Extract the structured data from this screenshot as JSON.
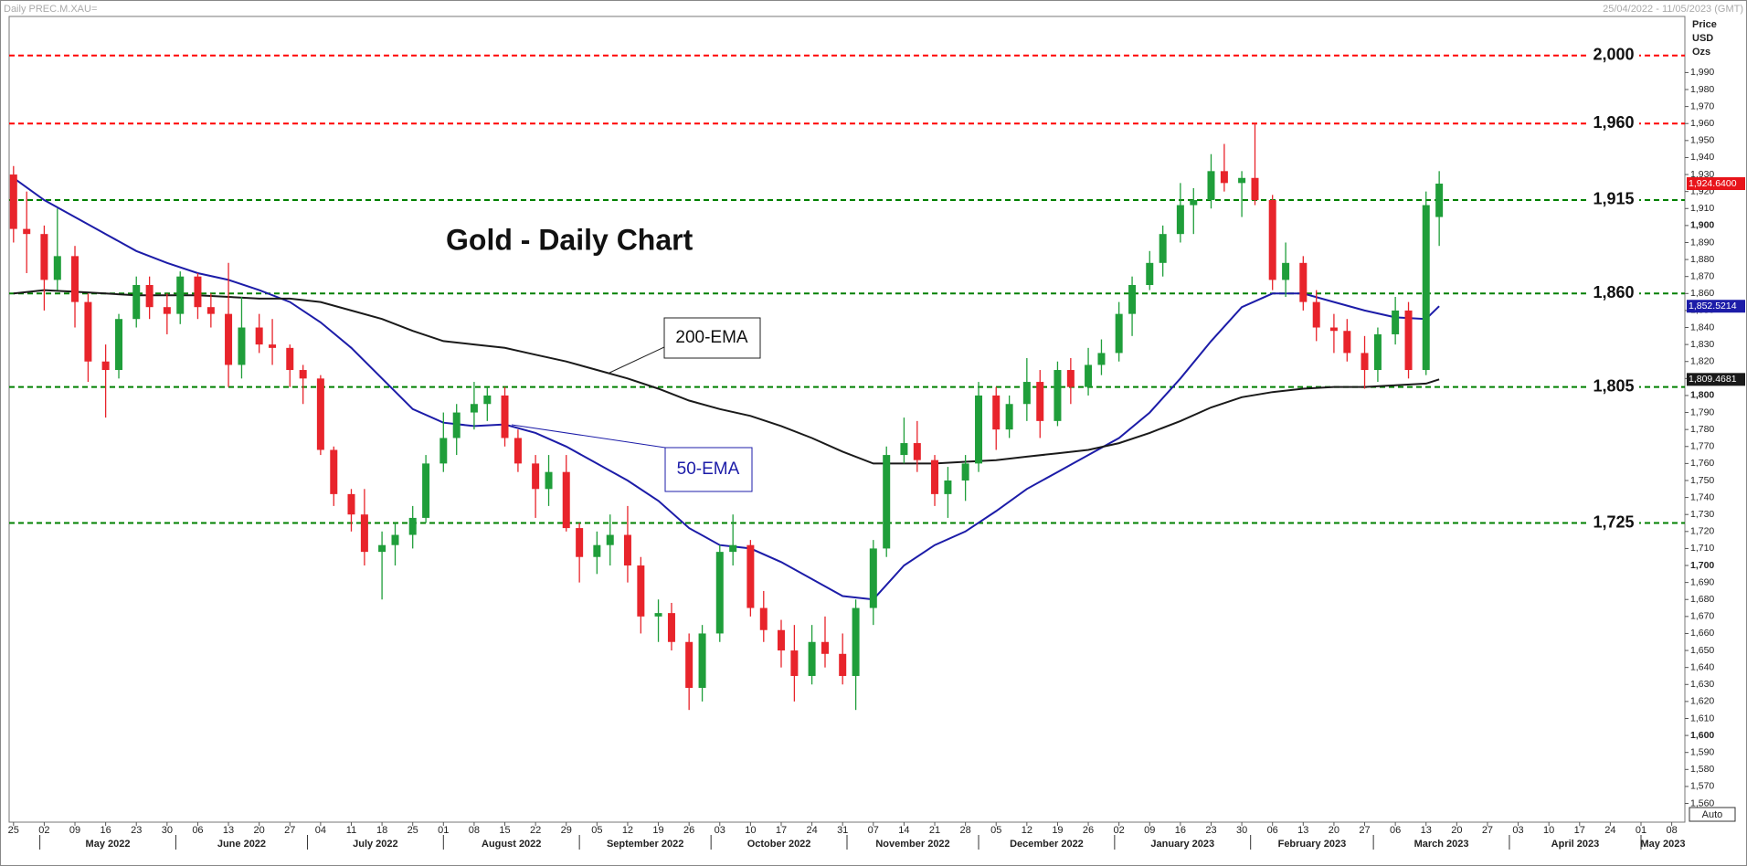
{
  "chart_data": {
    "type": "candlestick",
    "title": "Gold - Daily Chart",
    "instrument": "Daily PREC.M.XAU=",
    "range_label": "25/04/2022 - 11/05/2023 (GMT)",
    "y_label": [
      "Price",
      "USD",
      "Ozs"
    ],
    "button": "Auto",
    "up_color": "#1f9e3a",
    "down_color": "#e8242b",
    "xlim": [
      "2022-04-24",
      "2023-05-11"
    ],
    "ylim": [
      1549,
      2023
    ],
    "x": [
      "2022-04-25",
      "2022-04-28",
      "2022-05-02",
      "2022-05-05",
      "2022-05-09",
      "2022-05-12",
      "2022-05-16",
      "2022-05-19",
      "2022-05-23",
      "2022-05-26",
      "2022-05-30",
      "2022-06-02",
      "2022-06-06",
      "2022-06-09",
      "2022-06-13",
      "2022-06-16",
      "2022-06-20",
      "2022-06-23",
      "2022-06-27",
      "2022-06-30",
      "2022-07-04",
      "2022-07-07",
      "2022-07-11",
      "2022-07-14",
      "2022-07-18",
      "2022-07-21",
      "2022-07-25",
      "2022-07-28",
      "2022-08-01",
      "2022-08-04",
      "2022-08-08",
      "2022-08-11",
      "2022-08-15",
      "2022-08-18",
      "2022-08-22",
      "2022-08-25",
      "2022-08-29",
      "2022-09-01",
      "2022-09-05",
      "2022-09-08",
      "2022-09-12",
      "2022-09-15",
      "2022-09-19",
      "2022-09-22",
      "2022-09-26",
      "2022-09-29",
      "2022-10-03",
      "2022-10-06",
      "2022-10-10",
      "2022-10-13",
      "2022-10-17",
      "2022-10-20",
      "2022-10-24",
      "2022-10-27",
      "2022-10-31",
      "2022-11-03",
      "2022-11-07",
      "2022-11-10",
      "2022-11-14",
      "2022-11-17",
      "2022-11-21",
      "2022-11-24",
      "2022-11-28",
      "2022-12-01",
      "2022-12-05",
      "2022-12-08",
      "2022-12-12",
      "2022-12-15",
      "2022-12-19",
      "2022-12-22",
      "2022-12-26",
      "2022-12-29",
      "2023-01-02",
      "2023-01-05",
      "2023-01-09",
      "2023-01-12",
      "2023-01-16",
      "2023-01-19",
      "2023-01-23",
      "2023-01-26",
      "2023-01-30",
      "2023-02-02",
      "2023-02-06",
      "2023-02-09",
      "2023-02-13",
      "2023-02-16",
      "2023-02-20",
      "2023-02-23",
      "2023-02-27",
      "2023-03-02",
      "2023-03-06",
      "2023-03-09",
      "2023-03-13",
      "2023-03-16"
    ],
    "open": [
      1930,
      1898,
      1895,
      1868,
      1882,
      1855,
      1820,
      1815,
      1845,
      1865,
      1852,
      1848,
      1870,
      1852,
      1848,
      1818,
      1840,
      1830,
      1828,
      1815,
      1810,
      1768,
      1742,
      1730,
      1708,
      1712,
      1718,
      1728,
      1760,
      1775,
      1790,
      1795,
      1800,
      1775,
      1760,
      1745,
      1755,
      1722,
      1705,
      1712,
      1718,
      1700,
      1670,
      1672,
      1655,
      1628,
      1660,
      1708,
      1712,
      1675,
      1662,
      1650,
      1635,
      1655,
      1648,
      1635,
      1675,
      1710,
      1765,
      1772,
      1762,
      1742,
      1750,
      1760,
      1800,
      1780,
      1795,
      1808,
      1785,
      1815,
      1805,
      1818,
      1825,
      1848,
      1865,
      1878,
      1895,
      1912,
      1915,
      1932,
      1925,
      1928,
      1915,
      1868,
      1878,
      1855,
      1840,
      1838,
      1825,
      1815,
      1836,
      1850,
      1815,
      1905
    ],
    "high": [
      1935,
      1920,
      1900,
      1910,
      1888,
      1860,
      1830,
      1848,
      1870,
      1870,
      1860,
      1873,
      1872,
      1860,
      1878,
      1858,
      1848,
      1845,
      1830,
      1818,
      1812,
      1770,
      1745,
      1745,
      1720,
      1725,
      1735,
      1765,
      1790,
      1795,
      1808,
      1805,
      1805,
      1780,
      1765,
      1765,
      1765,
      1725,
      1720,
      1730,
      1735,
      1705,
      1680,
      1678,
      1660,
      1665,
      1712,
      1730,
      1715,
      1685,
      1668,
      1665,
      1665,
      1670,
      1660,
      1680,
      1715,
      1770,
      1787,
      1785,
      1765,
      1758,
      1765,
      1808,
      1805,
      1800,
      1822,
      1815,
      1820,
      1822,
      1828,
      1833,
      1855,
      1870,
      1885,
      1900,
      1925,
      1922,
      1942,
      1948,
      1932,
      1960,
      1918,
      1890,
      1882,
      1862,
      1848,
      1845,
      1835,
      1840,
      1858,
      1855,
      1920,
      1932
    ],
    "low": [
      1890,
      1872,
      1850,
      1862,
      1840,
      1808,
      1787,
      1810,
      1840,
      1845,
      1836,
      1842,
      1845,
      1840,
      1805,
      1810,
      1825,
      1818,
      1805,
      1795,
      1765,
      1735,
      1720,
      1700,
      1680,
      1700,
      1710,
      1725,
      1755,
      1765,
      1780,
      1785,
      1770,
      1755,
      1728,
      1735,
      1720,
      1690,
      1695,
      1700,
      1690,
      1660,
      1655,
      1650,
      1615,
      1620,
      1655,
      1700,
      1670,
      1655,
      1640,
      1620,
      1630,
      1640,
      1630,
      1615,
      1665,
      1705,
      1760,
      1755,
      1735,
      1728,
      1738,
      1755,
      1768,
      1775,
      1785,
      1775,
      1782,
      1795,
      1800,
      1812,
      1820,
      1835,
      1862,
      1870,
      1890,
      1895,
      1910,
      1920,
      1905,
      1912,
      1862,
      1858,
      1850,
      1832,
      1825,
      1820,
      1804,
      1808,
      1830,
      1810,
      1812,
      1888
    ],
    "close": [
      1898,
      1895,
      1868,
      1882,
      1855,
      1820,
      1815,
      1845,
      1865,
      1852,
      1848,
      1870,
      1852,
      1848,
      1818,
      1840,
      1830,
      1828,
      1815,
      1810,
      1768,
      1742,
      1730,
      1708,
      1712,
      1718,
      1728,
      1760,
      1775,
      1790,
      1795,
      1800,
      1775,
      1760,
      1745,
      1755,
      1722,
      1705,
      1712,
      1718,
      1700,
      1670,
      1672,
      1655,
      1628,
      1660,
      1708,
      1712,
      1675,
      1662,
      1650,
      1635,
      1655,
      1648,
      1635,
      1675,
      1710,
      1765,
      1772,
      1762,
      1742,
      1750,
      1760,
      1800,
      1780,
      1795,
      1808,
      1785,
      1815,
      1805,
      1818,
      1825,
      1848,
      1865,
      1878,
      1895,
      1912,
      1915,
      1932,
      1925,
      1928,
      1915,
      1868,
      1878,
      1855,
      1840,
      1838,
      1825,
      1815,
      1836,
      1850,
      1815,
      1912,
      1924.64
    ],
    "close_tag": "1,924.6400",
    "close_tag_color": "#e8141a",
    "lines": [
      {
        "name": "50-EMA",
        "color": "#1c1ca8",
        "tag": "1,852.5214",
        "x": [
          "2022-04-25",
          "2022-05-02",
          "2022-05-09",
          "2022-05-16",
          "2022-05-23",
          "2022-05-30",
          "2022-06-06",
          "2022-06-13",
          "2022-06-20",
          "2022-06-27",
          "2022-07-04",
          "2022-07-11",
          "2022-07-18",
          "2022-07-25",
          "2022-08-01",
          "2022-08-08",
          "2022-08-15",
          "2022-08-22",
          "2022-08-29",
          "2022-09-05",
          "2022-09-12",
          "2022-09-19",
          "2022-09-26",
          "2022-10-03",
          "2022-10-10",
          "2022-10-17",
          "2022-10-24",
          "2022-10-31",
          "2022-11-07",
          "2022-11-14",
          "2022-11-21",
          "2022-11-28",
          "2022-12-05",
          "2022-12-12",
          "2022-12-19",
          "2022-12-26",
          "2023-01-02",
          "2023-01-09",
          "2023-01-16",
          "2023-01-23",
          "2023-01-30",
          "2023-02-06",
          "2023-02-13",
          "2023-02-20",
          "2023-02-27",
          "2023-03-06",
          "2023-03-13",
          "2023-03-16"
        ],
        "values": [
          1928,
          1915,
          1905,
          1895,
          1885,
          1878,
          1872,
          1868,
          1862,
          1855,
          1843,
          1828,
          1810,
          1792,
          1784,
          1782,
          1783,
          1778,
          1770,
          1760,
          1750,
          1738,
          1722,
          1712,
          1710,
          1702,
          1692,
          1682,
          1680,
          1700,
          1712,
          1720,
          1732,
          1745,
          1755,
          1765,
          1775,
          1790,
          1810,
          1832,
          1852,
          1860,
          1860,
          1855,
          1850,
          1846,
          1845,
          1852.5214
        ]
      },
      {
        "name": "200-EMA",
        "color": "#1a1a1a",
        "tag": "1,809.4681",
        "x": [
          "2022-04-25",
          "2022-05-02",
          "2022-05-09",
          "2022-05-16",
          "2022-05-23",
          "2022-05-30",
          "2022-06-06",
          "2022-06-13",
          "2022-06-20",
          "2022-06-27",
          "2022-07-04",
          "2022-07-11",
          "2022-07-18",
          "2022-07-25",
          "2022-08-01",
          "2022-08-08",
          "2022-08-15",
          "2022-08-22",
          "2022-08-29",
          "2022-09-05",
          "2022-09-12",
          "2022-09-19",
          "2022-09-26",
          "2022-10-03",
          "2022-10-10",
          "2022-10-17",
          "2022-10-24",
          "2022-10-31",
          "2022-11-07",
          "2022-11-14",
          "2022-11-21",
          "2022-11-28",
          "2022-12-05",
          "2022-12-12",
          "2022-12-19",
          "2022-12-26",
          "2023-01-02",
          "2023-01-09",
          "2023-01-16",
          "2023-01-23",
          "2023-01-30",
          "2023-02-06",
          "2023-02-13",
          "2023-02-20",
          "2023-02-27",
          "2023-03-06",
          "2023-03-13",
          "2023-03-16"
        ],
        "values": [
          1860,
          1862,
          1861,
          1860,
          1859,
          1859,
          1859,
          1858,
          1857,
          1857,
          1855,
          1850,
          1845,
          1838,
          1832,
          1830,
          1828,
          1824,
          1820,
          1815,
          1810,
          1804,
          1797,
          1792,
          1788,
          1782,
          1775,
          1767,
          1760,
          1760,
          1760,
          1761,
          1762,
          1764,
          1766,
          1768,
          1772,
          1778,
          1785,
          1793,
          1799,
          1802,
          1804,
          1805,
          1805,
          1806,
          1807,
          1809.4681
        ]
      }
    ],
    "levels": [
      {
        "value": 2000,
        "label": "2,000",
        "color": "#ff0000"
      },
      {
        "value": 1960,
        "label": "1,960",
        "color": "#ff0000"
      },
      {
        "value": 1915,
        "label": "1,915",
        "color": "#008000"
      },
      {
        "value": 1860,
        "label": "1,860",
        "color": "#008000"
      },
      {
        "value": 1805,
        "label": "1,805",
        "color": "#008000"
      },
      {
        "value": 1725,
        "label": "1,725",
        "color": "#008000"
      }
    ],
    "yticks": [
      {
        "value": 1560,
        "label": "1,560"
      },
      {
        "value": 1570,
        "label": "1,570"
      },
      {
        "value": 1580,
        "label": "1,580"
      },
      {
        "value": 1590,
        "label": "1,590"
      },
      {
        "value": 1600,
        "label": "1,600"
      },
      {
        "value": 1610,
        "label": "1,610"
      },
      {
        "value": 1620,
        "label": "1,620"
      },
      {
        "value": 1630,
        "label": "1,630"
      },
      {
        "value": 1640,
        "label": "1,640"
      },
      {
        "value": 1650,
        "label": "1,650"
      },
      {
        "value": 1660,
        "label": "1,660"
      },
      {
        "value": 1670,
        "label": "1,670"
      },
      {
        "value": 1680,
        "label": "1,680"
      },
      {
        "value": 1690,
        "label": "1,690"
      },
      {
        "value": 1700,
        "label": "1,700"
      },
      {
        "value": 1710,
        "label": "1,710"
      },
      {
        "value": 1720,
        "label": "1,720"
      },
      {
        "value": 1730,
        "label": "1,730"
      },
      {
        "value": 1740,
        "label": "1,740"
      },
      {
        "value": 1750,
        "label": "1,750"
      },
      {
        "value": 1760,
        "label": "1,760"
      },
      {
        "value": 1770,
        "label": "1,770"
      },
      {
        "value": 1780,
        "label": "1,780"
      },
      {
        "value": 1790,
        "label": "1,790"
      },
      {
        "value": 1800,
        "label": "1,800"
      },
      {
        "value": 1810,
        "label": "1,810"
      },
      {
        "value": 1820,
        "label": "1,820"
      },
      {
        "value": 1830,
        "label": "1,830"
      },
      {
        "value": 1840,
        "label": "1,840"
      },
      {
        "value": 1850,
        "label": "1,850"
      },
      {
        "value": 1860,
        "label": "1,860"
      },
      {
        "value": 1870,
        "label": "1,870"
      },
      {
        "value": 1880,
        "label": "1,880"
      },
      {
        "value": 1890,
        "label": "1,890"
      },
      {
        "value": 1900,
        "label": "1,900"
      },
      {
        "value": 1910,
        "label": "1,910"
      },
      {
        "value": 1920,
        "label": "1,920"
      },
      {
        "value": 1930,
        "label": "1,930"
      },
      {
        "value": 1940,
        "label": "1,940"
      },
      {
        "value": 1950,
        "label": "1,950"
      },
      {
        "value": 1960,
        "label": "1,960"
      },
      {
        "value": 1970,
        "label": "1,970"
      },
      {
        "value": 1980,
        "label": "1,980"
      },
      {
        "value": 1990,
        "label": "1,990"
      }
    ],
    "xticks": [
      {
        "value": "2022-04-25",
        "label": "25"
      },
      {
        "value": "2022-05-02",
        "label": "02"
      },
      {
        "value": "2022-05-09",
        "label": "09"
      },
      {
        "value": "2022-05-16",
        "label": "16"
      },
      {
        "value": "2022-05-23",
        "label": "23"
      },
      {
        "value": "2022-05-30",
        "label": "30"
      },
      {
        "value": "2022-06-06",
        "label": "06"
      },
      {
        "value": "2022-06-13",
        "label": "13"
      },
      {
        "value": "2022-06-20",
        "label": "20"
      },
      {
        "value": "2022-06-27",
        "label": "27"
      },
      {
        "value": "2022-07-04",
        "label": "04"
      },
      {
        "value": "2022-07-11",
        "label": "11"
      },
      {
        "value": "2022-07-18",
        "label": "18"
      },
      {
        "value": "2022-07-25",
        "label": "25"
      },
      {
        "value": "2022-08-01",
        "label": "01"
      },
      {
        "value": "2022-08-08",
        "label": "08"
      },
      {
        "value": "2022-08-15",
        "label": "15"
      },
      {
        "value": "2022-08-22",
        "label": "22"
      },
      {
        "value": "2022-08-29",
        "label": "29"
      },
      {
        "value": "2022-09-05",
        "label": "05"
      },
      {
        "value": "2022-09-12",
        "label": "12"
      },
      {
        "value": "2022-09-19",
        "label": "19"
      },
      {
        "value": "2022-09-26",
        "label": "26"
      },
      {
        "value": "2022-10-03",
        "label": "03"
      },
      {
        "value": "2022-10-10",
        "label": "10"
      },
      {
        "value": "2022-10-17",
        "label": "17"
      },
      {
        "value": "2022-10-24",
        "label": "24"
      },
      {
        "value": "2022-10-31",
        "label": "31"
      },
      {
        "value": "2022-11-07",
        "label": "07"
      },
      {
        "value": "2022-11-14",
        "label": "14"
      },
      {
        "value": "2022-11-21",
        "label": "21"
      },
      {
        "value": "2022-11-28",
        "label": "28"
      },
      {
        "value": "2022-12-05",
        "label": "05"
      },
      {
        "value": "2022-12-12",
        "label": "12"
      },
      {
        "value": "2022-12-19",
        "label": "19"
      },
      {
        "value": "2022-12-26",
        "label": "26"
      },
      {
        "value": "2023-01-02",
        "label": "02"
      },
      {
        "value": "2023-01-09",
        "label": "09"
      },
      {
        "value": "2023-01-16",
        "label": "16"
      },
      {
        "value": "2023-01-23",
        "label": "23"
      },
      {
        "value": "2023-01-30",
        "label": "30"
      },
      {
        "value": "2023-02-06",
        "label": "06"
      },
      {
        "value": "2023-02-13",
        "label": "13"
      },
      {
        "value": "2023-02-20",
        "label": "20"
      },
      {
        "value": "2023-02-27",
        "label": "27"
      },
      {
        "value": "2023-03-06",
        "label": "06"
      },
      {
        "value": "2023-03-13",
        "label": "13"
      },
      {
        "value": "2023-03-20",
        "label": "20"
      },
      {
        "value": "2023-03-27",
        "label": "27"
      },
      {
        "value": "2023-04-03",
        "label": "03"
      },
      {
        "value": "2023-04-10",
        "label": "10"
      },
      {
        "value": "2023-04-17",
        "label": "17"
      },
      {
        "value": "2023-04-24",
        "label": "24"
      },
      {
        "value": "2023-05-01",
        "label": "01"
      },
      {
        "value": "2023-05-08",
        "label": "08"
      }
    ],
    "months": [
      {
        "value": "2022-05",
        "label": "May 2022"
      },
      {
        "value": "2022-06",
        "label": "June 2022"
      },
      {
        "value": "2022-07",
        "label": "July 2022"
      },
      {
        "value": "2022-08",
        "label": "August 2022"
      },
      {
        "value": "2022-09",
        "label": "September 2022"
      },
      {
        "value": "2022-10",
        "label": "October 2022"
      },
      {
        "value": "2022-11",
        "label": "November 2022"
      },
      {
        "value": "2022-12",
        "label": "December 2022"
      },
      {
        "value": "2023-01",
        "label": "January 2023"
      },
      {
        "value": "2023-02",
        "label": "February 2023"
      },
      {
        "value": "2023-03",
        "label": "March 2023"
      },
      {
        "value": "2023-04",
        "label": "April 2023"
      },
      {
        "value": "2023-05",
        "label": "May 2023"
      }
    ]
  }
}
